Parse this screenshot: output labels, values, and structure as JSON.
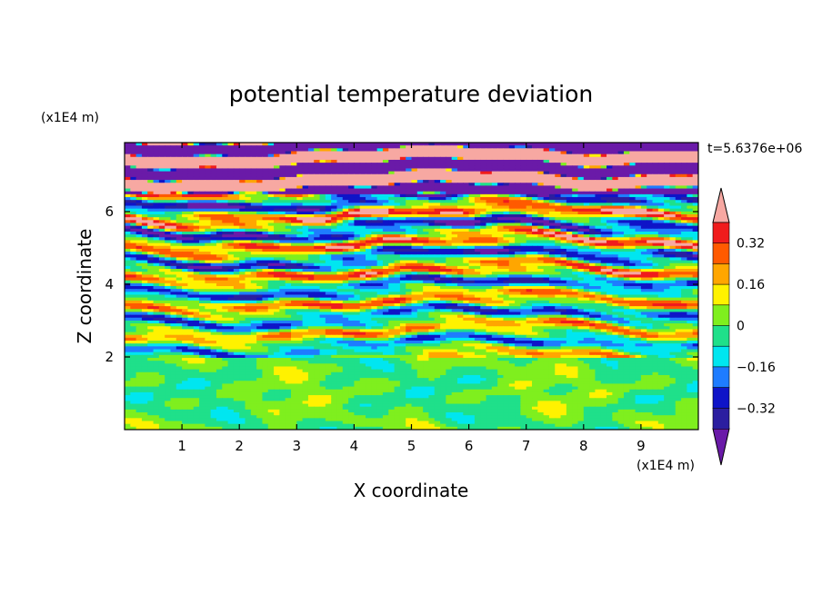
{
  "chart_data": {
    "type": "heatmap",
    "title": "potential temperature deviation",
    "xlabel": "X coordinate",
    "ylabel": "Z coordinate",
    "x_unit": "(x1E4 m)",
    "y_unit": "(x1E4 m)",
    "time_label": "t=5.6376e+06",
    "xlim": [
      0,
      10
    ],
    "ylim": [
      0,
      7.9
    ],
    "x_ticks": [
      "1",
      "2",
      "3",
      "4",
      "5",
      "6",
      "7",
      "8",
      "9"
    ],
    "y_ticks": [
      "2",
      "4",
      "6"
    ],
    "colorbar": {
      "tick_labels": [
        "0.32",
        "0.16",
        "0",
        "-0.16",
        "-0.32"
      ],
      "levels": [
        -0.4,
        -0.32,
        -0.24,
        -0.16,
        -0.08,
        0,
        0.08,
        0.16,
        0.24,
        0.32,
        0.4
      ],
      "extend": "both",
      "colors": [
        "#6a1aa8",
        "#2b1ea0",
        "#0f14c8",
        "#1e7cff",
        "#00e6f0",
        "#1fe08a",
        "#7fef1e",
        "#fff200",
        "#ffa600",
        "#ff5a00",
        "#f01c1c",
        "#f7a8a2"
      ]
    },
    "regions": [
      {
        "z_range": [
          0,
          1.95
        ],
        "description_values": "mostly near 0 (-0.08 to 0.08)"
      },
      {
        "z_range": [
          1.95,
          6.5
        ],
        "description_values": "layered bands from -0.40 to 0.40"
      },
      {
        "z_range": [
          6.5,
          7.9
        ],
        "description_values": "alternating bands of <-0.40 and >0.40"
      }
    ]
  }
}
